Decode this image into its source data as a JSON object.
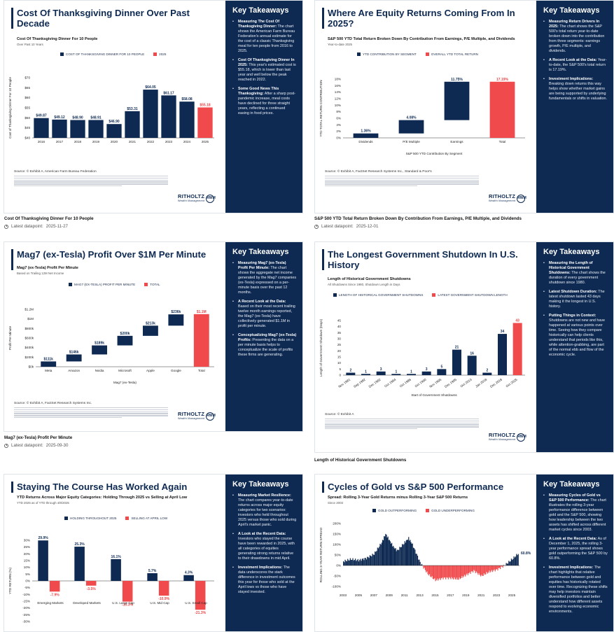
{
  "colors": {
    "navy": "#0e2a52",
    "red": "#f04a4c",
    "panel": "#0e2a52"
  },
  "logo": {
    "name": "RITHOLTZ",
    "sub": "Wealth Management",
    "mark": "RWM"
  },
  "latest_label": "Latest datapoint:",
  "cards": [
    {
      "title": "Cost Of Thanksgiving Dinner Over Past Decade",
      "subtitle": "Cost Of Thanksgiving Dinner For 10 People",
      "note": "Over Past 10 Years",
      "legend": [
        "COST OF THANKSGIVING DINNER FOR 10 PEOPLE",
        "2025"
      ],
      "source": "Source: © Exhibit A, American Farm Bureau Federation",
      "caption": "Cost Of Thanksgiving Dinner For 10 People",
      "latest": "2025-11-27",
      "takeaways_title": "Key Takeaways",
      "takeaways": [
        {
          "head": "Measuring The Cost Of Thanksgiving Dinner:",
          "body": "The chart shows the American Farm Bureau Federation's annual estimate for the cost of a classic Thanksgiving meal for ten people from 2016 to 2025."
        },
        {
          "head": "Cost Of Thanksgiving Dinner In 2025:",
          "body": "This year's estimated cost is $55.18, which is lower than last year and well below the peak reached in 2022."
        },
        {
          "head": "Some Good News This Thanksgiving:",
          "body": "After a sharp post-pandemic increase, meal costs have declined for three straight years, reflecting a continued easing in food prices."
        }
      ]
    },
    {
      "title": "Where Are Equity Returns Coming From In 2025?",
      "subtitle": "S&P 500 YTD Total Return Broken Down By Contribution From Earnings, P/E Multiple, and Dividends",
      "note": "Year-to-date 2025",
      "legend": [
        "YTD CONTRIBUTION BY SEGMENT",
        "OVERALL YTD TOTAL RETURN"
      ],
      "source": "Source: © Exhibit A, FactSet Research Systems Inc., Standard & Poor's",
      "caption": "S&P 500 YTD Total Return Broken Down By Contribution From Earnings, P/E Multiple, and Dividends",
      "latest": "2025-12-01",
      "takeaways_title": "Key Takeaways",
      "takeaways": [
        {
          "head": "Measuring Return Drivers In 2025:",
          "body": "The chart shows the S&P 500's total return year-to-date broken down into the contribution from three segments: earnings growth, P/E multiple, and dividends."
        },
        {
          "head": "A Recent Look at the Data:",
          "body": "Year-to-date, the S&P 500's total return is 17.19%."
        },
        {
          "head": "Investment Implications:",
          "body": "Breaking down returns this way helps show whether market gains are being supported by underlying fundamentals or shifts in valuation."
        }
      ]
    },
    {
      "title": "Mag7 (ex-Tesla) Profit Over $1M Per Minute",
      "subtitle": "Mag7 (ex-Tesla) Profit Per Minute",
      "note": "Based on Trailing 12M Net Income",
      "legend": [
        "MAG7 (EX-TESLA) PROFIT PER MINUTE",
        "TOTAL"
      ],
      "source": "Source: © Exhibit A, FactSet Research Systems Inc.",
      "caption": "Mag7 (ex-Tesla) Profit Per Minute",
      "latest": "2025-09-30",
      "takeaways_title": "Key Takeaways",
      "takeaways": [
        {
          "head": "Measuring Mag7 (ex-Tesla) Profit Per Minute:",
          "body": "The chart shows the aggregate net income generated by the Mag7 companies (ex-Tesla) expressed on a per-minute basis over the past 12 months."
        },
        {
          "head": "A Recent Look at the Data:",
          "body": "Based on their most recent trailing twelve month earnings reported, the Mag7 (ex-Tesla) have collectively generated $1.1M in profit per minute."
        },
        {
          "head": "Conceptualizing Mag7 (ex-Tesla) Profits:",
          "body": "Presenting the data on a per minute basis helps to conceptualize the scale of profits these firms are generating."
        }
      ]
    },
    {
      "title": "The Longest Government Shutdown In U.S. History",
      "subtitle": "Length of Historical Government Shutdowns",
      "note": "All Shutdowns Since 1980, Shutdown Length in Days",
      "legend": [
        "LENGTH OF HISTORICAL GOVERNMENT SHUTDOWNS",
        "LATEST GOVERNMENT SHUTDOWN LENGTH"
      ],
      "source": "Source: © Exhibit A",
      "caption": "Length of Historical Government Shutdowns",
      "latest": "",
      "takeaways_title": "Key Takeaways",
      "takeaways": [
        {
          "head": "Measuring the Length of Historical Government Shutdowns:",
          "body": "The chart shows the duration of every government shutdown since 1980."
        },
        {
          "head": "Latest Shutdown Duration:",
          "body": "The latest shutdown lasted 43 days making it the longest in U.S. history."
        },
        {
          "head": "Putting Things in Context:",
          "body": "Shutdowns are not new and have happened at various points over time. Seeing how they compare historically can help clients understand that periods like this, while attention-grabbing, are part of the normal ebb and flow of the economic cycle."
        }
      ]
    },
    {
      "title": "Staying The Course Has Worked Again",
      "subtitle": "YTD Returns Across Major Equity Categories: Holding Through 2025 vs Selling at April Low",
      "note": "YTD 2025 as of YTD through 4/8/2025",
      "legend": [
        "HOLDING THROUGHOUT 2025",
        "SELLING AT APRIL LOW"
      ],
      "source": "",
      "caption": "",
      "latest": "",
      "takeaways_title": "Key Takeaways",
      "takeaways": [
        {
          "head": "Measuring Market Resilience:",
          "body": "The chart compares year-to-date returns across major equity categories for two scenarios: investors who held throughout 2025 versus those who sold during April's market panic."
        },
        {
          "head": "A Look at the Recent Data:",
          "body": "Investors who stayed the course have been rewarded in 2025, with all categories of equities generating strong returns relative to their drawdowns in mid April."
        },
        {
          "head": "Investment Implications:",
          "body": "The data underscores the stark difference in investment outcomes this year for those who sold at the April lows vs those who have stayed invested."
        }
      ]
    },
    {
      "title": "Cycles of Gold vs S&P 500 Performance",
      "subtitle": "Spread: Rolling 3-Year Gold Returns minus Rolling 3-Year S&P 500 Returns",
      "note": "Since 2003",
      "legend": [
        "GOLD OUTPERFORMING",
        "GOLD UNDERPERFORMING"
      ],
      "source": "",
      "caption": "",
      "latest": "",
      "takeaways_title": "Key Takeaways",
      "takeaways": [
        {
          "head": "Measuring Cycles of Gold vs S&P 500 Performance:",
          "body": "The chart illustrates the rolling 3-year performance difference between gold and the S&P 500, showing how leadership between the two assets has shifted across different market cycles since 2003."
        },
        {
          "head": "A Look at the Recent Data:",
          "body": "As of December 1, 2025, the rolling 3-year performance spread shows gold outperforming the S&P 500 by 60.8%."
        },
        {
          "head": "Investment Implications:",
          "body": "The chart highlights that relative performance between gold and equities has historically rotated over time. Recognizing these shifts may help investors maintain diversified portfolios and better understand how different assets respond to evolving economic environments."
        }
      ]
    }
  ],
  "chart_data": [
    {
      "type": "bar",
      "title": "Cost Of Thanksgiving Dinner For 10 People",
      "ylabel": "Cost of Thanksgiving Dinner For 10 People",
      "categories": [
        "2016",
        "2017",
        "2018",
        "2019",
        "2020",
        "2021",
        "2022",
        "2023",
        "2024",
        "2025"
      ],
      "values": [
        49.87,
        49.12,
        48.9,
        48.91,
        46.9,
        53.31,
        64.05,
        61.17,
        58.08,
        55.18
      ],
      "labels": [
        "$49.87",
        "$49.12",
        "$48.90",
        "$48.91",
        "$46.90",
        "$53.31",
        "$64.05",
        "$61.17",
        "$58.08",
        "$55.18"
      ],
      "highlight_last": true,
      "ylim": [
        40,
        70
      ],
      "yticks": [
        "$40",
        "$45",
        "$50",
        "$55",
        "$60",
        "$65",
        "$70"
      ]
    },
    {
      "type": "bar",
      "title": "S&P 500 YTD Total Return Broken Down By Segment",
      "xlabel": "S&P 500 YTD Contribution By Segment",
      "ylabel": "YTD TOTAL RETURN CONTRIBUTION",
      "categories": [
        "Dividends",
        "P/E Multiple",
        "Earnings",
        "Total"
      ],
      "values": [
        1.36,
        4.08,
        11.75,
        17.19
      ],
      "labels": [
        "1.36%",
        "4.08%",
        "11.75%",
        "17.19%"
      ],
      "waterfall": true,
      "ylim": [
        0,
        18
      ],
      "yticks": [
        "0%",
        "2%",
        "4%",
        "6%",
        "8%",
        "10%",
        "12%",
        "14%",
        "16%",
        "18%"
      ]
    },
    {
      "type": "bar",
      "title": "Mag7 (ex-Tesla) Profit Per Minute",
      "xlabel": "Mag7 (ex-Tesla)",
      "ylabel": "Profit Per Minute",
      "categories": [
        "Meta",
        "Amazon",
        "Nvidia",
        "Microsoft",
        "Apple",
        "Google",
        "Total"
      ],
      "values": [
        111,
        146,
        189,
        200,
        213,
        236,
        1100
      ],
      "labels": [
        "$111k",
        "$146k",
        "$189k",
        "$200k",
        "$213k",
        "$236k",
        "$1.1M"
      ],
      "waterfall": true,
      "ylim": [
        0,
        1200
      ],
      "yticks": [
        "$0k",
        "$200k",
        "$400k",
        "$600k",
        "$800k",
        "$1M",
        "$1.2M"
      ]
    },
    {
      "type": "bar",
      "title": "Length of Historical Government Shutdowns",
      "xlabel": "Start of Government Shutdowns",
      "ylabel": "Length of Government Shutdown (Days)",
      "categories": [
        "Nov 1981",
        "Sep 1982",
        "Dec 1982",
        "Oct 1984",
        "Oct 1986",
        "Oct 1990",
        "Nov 1995",
        "Dec 1995",
        "Oct 2013",
        "Jan 2018",
        "Dec 2018",
        "Oct 2025"
      ],
      "values": [
        2,
        1,
        3,
        1,
        1,
        3,
        5,
        21,
        16,
        2,
        34,
        43
      ],
      "labels": [
        "2",
        "1",
        "3",
        "1",
        "1",
        "3",
        "5",
        "21",
        "16",
        "2",
        "34",
        "43"
      ],
      "highlight_last": true,
      "ylim": [
        0,
        45
      ],
      "yticks": [
        "0",
        "5",
        "10",
        "15",
        "20",
        "25",
        "30",
        "35",
        "40",
        "45"
      ]
    },
    {
      "type": "bar",
      "title": "YTD Returns: Holding Through 2025 vs Selling at April Low",
      "ylabel": "YTD RETURN (%)",
      "categories": [
        "Emerging Markets",
        "Developed Markets",
        "U.S. Large Cap",
        "U.S. Mid Cap",
        "U.S. Small Cap"
      ],
      "series": [
        {
          "name": "Holding Throughout 2025",
          "values": [
            29.9,
            25.3,
            16.1,
            5.7,
            4.3
          ],
          "labels": [
            "29.9%",
            "25.3%",
            "16.1%",
            "5.7%",
            "4.3%"
          ]
        },
        {
          "name": "Selling at April Low",
          "values": [
            -7.9,
            -3.5,
            -15.3,
            -10.9,
            -21.3
          ],
          "labels": [
            "-7.9%",
            "-3.5%",
            "-15.3%",
            "-10.9%",
            "-21.3%"
          ]
        }
      ],
      "ylim": [
        -30,
        30
      ],
      "yticks": [
        "-30%",
        "-25%",
        "-20%",
        "-15%",
        "-10%",
        "-5%",
        "0%",
        "5%",
        "10%",
        "15%",
        "20%",
        "25%",
        "30%"
      ]
    },
    {
      "type": "area",
      "title": "Rolling 3-Year Gold minus S&P 500 Returns",
      "ylabel": "ROLLING 3-YEAR RETURN SPREAD",
      "x": [
        2003,
        2004,
        2005,
        2006,
        2007,
        2008,
        2008.5,
        2009,
        2009.5,
        2010,
        2011,
        2011.5,
        2012,
        2013,
        2014,
        2015,
        2016,
        2017,
        2018,
        2019,
        2020,
        2021,
        2022,
        2023,
        2024,
        2025,
        2025.9
      ],
      "values": [
        20,
        30,
        25,
        35,
        55,
        110,
        150,
        120,
        90,
        70,
        110,
        130,
        100,
        15,
        -40,
        -70,
        -60,
        -60,
        -65,
        -45,
        -25,
        -50,
        -30,
        -20,
        0,
        30,
        60.8
      ],
      "end_label": "60.8%",
      "xticks": [
        "2003",
        "2005",
        "2007",
        "2009",
        "2011",
        "2013",
        "2015",
        "2017",
        "2019",
        "2021",
        "2023",
        "2025"
      ],
      "ylim": [
        -100,
        200
      ],
      "yticks": [
        "-100%",
        "-50%",
        "0%",
        "50%",
        "100%",
        "150%",
        "200%"
      ]
    }
  ]
}
